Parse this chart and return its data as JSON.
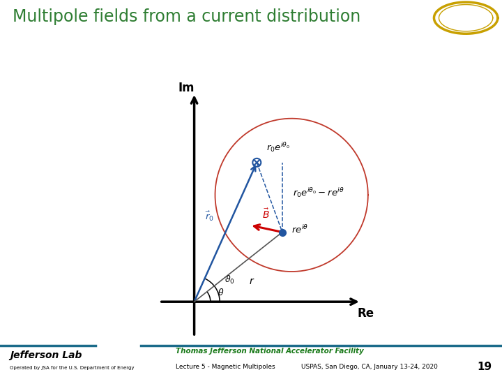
{
  "title": "Multipole fields from a current distribution",
  "title_color": "#2E7D32",
  "title_fontsize": 17,
  "bg_color": "#FFFFFF",
  "header_bar_color": "#1B6B8A",
  "footer_bar_color": "#1B6B8A",
  "axis_label_Re": "Re",
  "axis_label_Im": "Im",
  "label_r0_vec": "$\\vec{r}_0$",
  "label_re_ith": "$re^{i\\theta}$",
  "label_r0_eith0": "$r_0e^{i\\theta_0}$",
  "label_diff": "$r_0e^{i\\theta_0}-re^{i\\theta}$",
  "label_B": "$\\vec{B}$",
  "label_theta0": "$\\vartheta_0$",
  "label_theta": "$\\theta$",
  "label_r": "$r$",
  "footer_jlab_text": "Thomas Jefferson National Accelerator Facility",
  "footer_lecture": "Lecture 5 - Magnetic Multipoles",
  "footer_event": "USPAS, San Diego, CA, January 13-24, 2020",
  "footer_page": "19",
  "footer_operated": "Operated by JSA for the U.S. Department of Energy",
  "circle_color": "#C0392B",
  "vec_color": "#2155A0",
  "B_color": "#CC0000",
  "dot_color": "#2155A0"
}
